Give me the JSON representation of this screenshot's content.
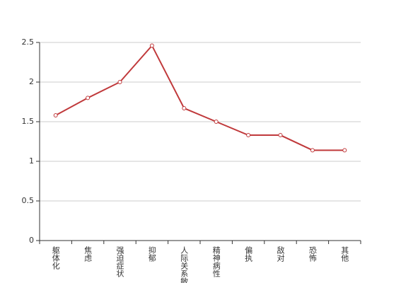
{
  "chart_data": {
    "type": "line",
    "categories": [
      "躯体化",
      "焦虑",
      "强迫症状",
      "抑郁",
      "人际关系敏感",
      "精神病性",
      "偏执",
      "敌对",
      "恐怖",
      "其他"
    ],
    "series": [
      {
        "color": "#c0393b",
        "values": [
          1.58,
          1.8,
          2.0,
          2.46,
          1.67,
          1.5,
          1.33,
          1.33,
          1.14,
          1.14
        ]
      }
    ],
    "ylim": [
      0,
      2.5
    ],
    "yticks": [
      0,
      0.5,
      1,
      1.5,
      2,
      2.5
    ],
    "grid": true
  }
}
